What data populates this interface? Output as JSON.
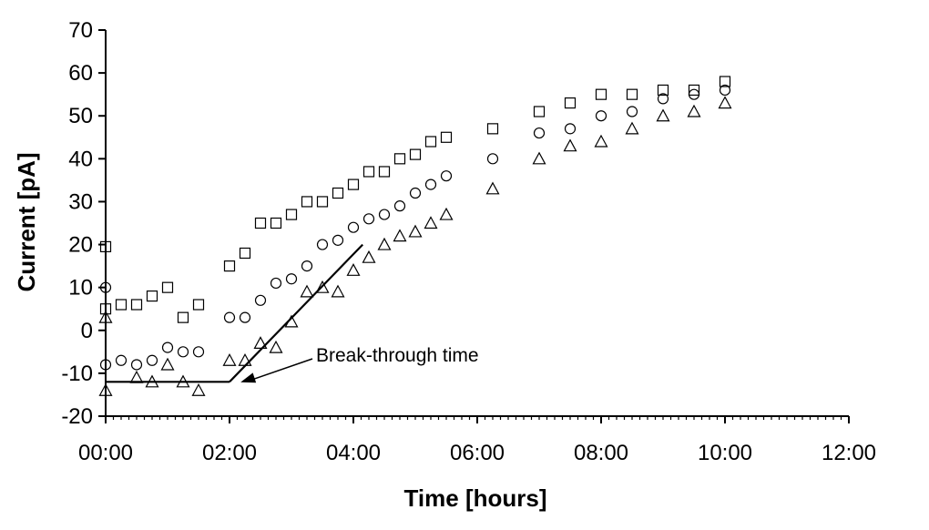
{
  "chart_data": {
    "type": "scatter",
    "title": "",
    "xlabel": "Time [hours]",
    "ylabel": "Current [pA]",
    "xlim": [
      0,
      12
    ],
    "ylim": [
      -20,
      70
    ],
    "x_ticks": [
      0,
      2,
      4,
      6,
      8,
      10,
      12
    ],
    "x_tick_labels": [
      "00:00",
      "02:00",
      "04:00",
      "06:00",
      "08:00",
      "10:00",
      "12:00"
    ],
    "y_ticks": [
      -20,
      -10,
      0,
      10,
      20,
      30,
      40,
      50,
      60,
      70
    ],
    "y_tick_labels": [
      "-20",
      "-10",
      "0",
      "10",
      "20",
      "30",
      "40",
      "50",
      "60",
      "70"
    ],
    "grid": false,
    "legend": "none",
    "series": [
      {
        "marker": "square",
        "points": [
          [
            0,
            19.5
          ],
          [
            0,
            5
          ],
          [
            0.25,
            6
          ],
          [
            0.5,
            6
          ],
          [
            0.75,
            8
          ],
          [
            1,
            10
          ],
          [
            1.25,
            3
          ],
          [
            1.5,
            6
          ],
          [
            2,
            15
          ],
          [
            2.25,
            18
          ],
          [
            2.5,
            25
          ],
          [
            2.75,
            25
          ],
          [
            3,
            27
          ],
          [
            3.25,
            30
          ],
          [
            3.5,
            30
          ],
          [
            3.75,
            32
          ],
          [
            4,
            34
          ],
          [
            4.25,
            37
          ],
          [
            4.5,
            37
          ],
          [
            4.75,
            40
          ],
          [
            5,
            41
          ],
          [
            5.25,
            44
          ],
          [
            5.5,
            45
          ],
          [
            6.25,
            47
          ],
          [
            7,
            51
          ],
          [
            7.5,
            53
          ],
          [
            8,
            55
          ],
          [
            8.5,
            55
          ],
          [
            9,
            56
          ],
          [
            9.5,
            56
          ],
          [
            10,
            58
          ]
        ]
      },
      {
        "marker": "circle",
        "points": [
          [
            0,
            10
          ],
          [
            0,
            -8
          ],
          [
            0.25,
            -7
          ],
          [
            0.5,
            -8
          ],
          [
            0.75,
            -7
          ],
          [
            1,
            -4
          ],
          [
            1.25,
            -5
          ],
          [
            1.5,
            -5
          ],
          [
            2,
            3
          ],
          [
            2.25,
            3
          ],
          [
            2.5,
            7
          ],
          [
            2.75,
            11
          ],
          [
            3,
            12
          ],
          [
            3.25,
            15
          ],
          [
            3.5,
            20
          ],
          [
            3.75,
            21
          ],
          [
            4,
            24
          ],
          [
            4.25,
            26
          ],
          [
            4.5,
            27
          ],
          [
            4.75,
            29
          ],
          [
            5,
            32
          ],
          [
            5.25,
            34
          ],
          [
            5.5,
            36
          ],
          [
            6.25,
            40
          ],
          [
            7,
            46
          ],
          [
            7.5,
            47
          ],
          [
            8,
            50
          ],
          [
            8.5,
            51
          ],
          [
            9,
            54
          ],
          [
            9.5,
            55
          ],
          [
            10,
            56
          ]
        ]
      },
      {
        "marker": "triangle",
        "points": [
          [
            0,
            3
          ],
          [
            0,
            -14
          ],
          [
            0.5,
            -11
          ],
          [
            0.75,
            -12
          ],
          [
            1,
            -8
          ],
          [
            1.25,
            -12
          ],
          [
            1.5,
            -14
          ],
          [
            2,
            -7
          ],
          [
            2.25,
            -7
          ],
          [
            2.5,
            -3
          ],
          [
            2.75,
            -4
          ],
          [
            3,
            2
          ],
          [
            3.25,
            9
          ],
          [
            3.5,
            10
          ],
          [
            3.75,
            9
          ],
          [
            4,
            14
          ],
          [
            4.25,
            17
          ],
          [
            4.5,
            20
          ],
          [
            4.75,
            22
          ],
          [
            5,
            23
          ],
          [
            5.25,
            25
          ],
          [
            5.5,
            27
          ],
          [
            6.25,
            33
          ],
          [
            7,
            40
          ],
          [
            7.5,
            43
          ],
          [
            8,
            44
          ],
          [
            8.5,
            47
          ],
          [
            9,
            50
          ],
          [
            9.5,
            51
          ],
          [
            10,
            53
          ]
        ]
      }
    ],
    "baseline_line": [
      [
        0,
        -12
      ],
      [
        2,
        -12
      ]
    ],
    "fit_line": [
      [
        2,
        -12
      ],
      [
        4.15,
        20
      ]
    ],
    "annotation": {
      "text": "Break-through time",
      "arrow_to": [
        2.2,
        -12
      ]
    }
  }
}
